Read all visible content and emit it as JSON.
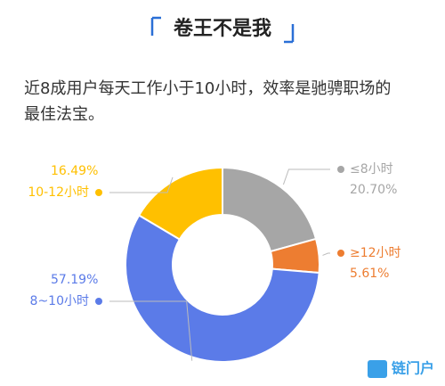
{
  "chart_data": {
    "type": "pie",
    "title": "卷王不是我",
    "subtitle": [
      "近8成用户每天工作小于10小时，效率是驰骋职场的",
      "最佳法宝。"
    ],
    "categories": [
      "≤8小时",
      "≥12小时",
      "8~10小时",
      "10-12小时"
    ],
    "values": [
      20.7,
      5.61,
      57.19,
      16.49
    ],
    "value_labels": [
      "20.70%",
      "5.61%",
      "57.19%",
      "16.49%"
    ],
    "colors": [
      "#a6a6a6",
      "#ed7d31",
      "#5b7be8",
      "#ffc000"
    ],
    "logo": "链门户"
  }
}
